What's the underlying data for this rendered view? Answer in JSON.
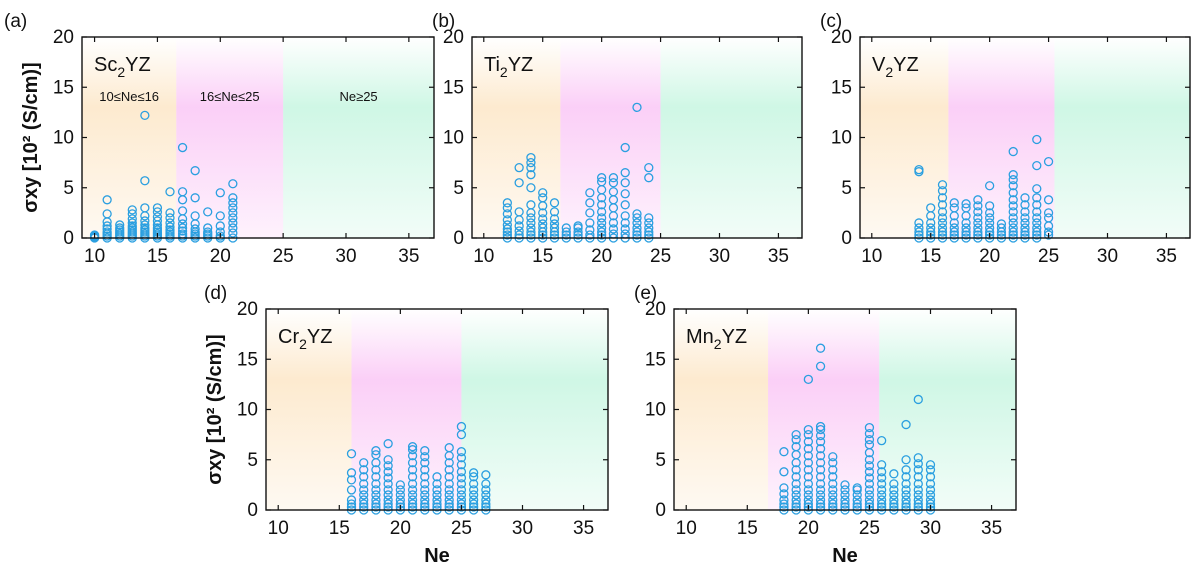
{
  "chart_data": [
    {
      "type": "scatter",
      "panel_label": "(a)",
      "compound": {
        "base": "Sc",
        "sub": "2",
        "rest": "YZ"
      },
      "ylabel": "σxy [10² (S/cm)]",
      "xlabel": "",
      "xlim": [
        9,
        37
      ],
      "ylim": [
        0,
        20
      ],
      "xticks": [
        10,
        15,
        20,
        25,
        30,
        35
      ],
      "yticks": [
        0,
        5,
        10,
        15,
        20
      ],
      "regions": [
        {
          "from": 9,
          "to": 16.5,
          "color": "#fbd9a8",
          "label": "10≤Ne≤16"
        },
        {
          "from": 16.5,
          "to": 25,
          "color": "#f7a8f0",
          "label": "16≤Ne≤25"
        },
        {
          "from": 25,
          "to": 37,
          "color": "#a8f0d0",
          "label": "Ne≥25"
        }
      ],
      "marker_color": "#2a9fe0",
      "columns": [
        {
          "x": 10,
          "y": [
            0,
            0.1,
            0.2,
            0.3
          ]
        },
        {
          "x": 11,
          "y": [
            0,
            0.2,
            0.4,
            0.6,
            0.9,
            1.2,
            1.6,
            2.4,
            3.8
          ]
        },
        {
          "x": 12,
          "y": [
            0,
            0.2,
            0.4,
            0.6,
            0.8,
            1.0,
            1.3
          ]
        },
        {
          "x": 13,
          "y": [
            0,
            0.2,
            0.4,
            0.6,
            0.8,
            1.0,
            1.2,
            1.5,
            1.9,
            2.4,
            2.8
          ]
        },
        {
          "x": 14,
          "y": [
            0,
            0.2,
            0.4,
            0.6,
            0.8,
            1.0,
            1.3,
            1.7,
            2.2,
            3.0,
            5.7,
            12.2
          ]
        },
        {
          "x": 15,
          "y": [
            0,
            0.2,
            0.4,
            0.6,
            0.8,
            1.0,
            1.3,
            1.7,
            2.1,
            2.6,
            3.0
          ]
        },
        {
          "x": 16,
          "y": [
            0,
            0.2,
            0.4,
            0.6,
            0.8,
            1.1,
            1.5,
            2.0,
            2.5,
            4.6
          ]
        },
        {
          "x": 17,
          "y": [
            0,
            0.2,
            0.4,
            0.7,
            1.0,
            1.4,
            1.9,
            2.7,
            3.8,
            4.6,
            9.0
          ]
        },
        {
          "x": 18,
          "y": [
            0,
            0.2,
            0.4,
            0.6,
            0.9,
            1.4,
            2.2,
            4.0,
            6.7
          ]
        },
        {
          "x": 19,
          "y": [
            0,
            0.2,
            0.4,
            0.6,
            1.0,
            2.6
          ]
        },
        {
          "x": 20,
          "y": [
            0,
            0.2,
            0.6,
            1.2,
            2.2,
            4.5
          ]
        },
        {
          "x": 21,
          "y": [
            0,
            0.5,
            1.0,
            1.5,
            2.0,
            2.5,
            3.0,
            3.5,
            4.0,
            5.4
          ]
        }
      ]
    },
    {
      "type": "scatter",
      "panel_label": "(b)",
      "compound": {
        "base": "Ti",
        "sub": "2",
        "rest": "YZ"
      },
      "ylabel": "",
      "xlabel": "",
      "xlim": [
        9,
        37
      ],
      "ylim": [
        0,
        20
      ],
      "xticks": [
        10,
        15,
        20,
        25,
        30,
        35
      ],
      "yticks": [
        0,
        5,
        10,
        15,
        20
      ],
      "regions": [
        {
          "from": 9,
          "to": 16.5,
          "color": "#fbd9a8",
          "label": ""
        },
        {
          "from": 16.5,
          "to": 25,
          "color": "#f7a8f0",
          "label": ""
        },
        {
          "from": 25,
          "to": 37,
          "color": "#a8f0d0",
          "label": ""
        }
      ],
      "marker_color": "#2a9fe0",
      "columns": [
        {
          "x": 12,
          "y": [
            0,
            0.3,
            0.6,
            0.9,
            1.3,
            1.8,
            2.4,
            3.0,
            3.5
          ]
        },
        {
          "x": 13,
          "y": [
            0,
            0.3,
            0.7,
            1.2,
            1.8,
            2.6,
            5.5,
            7.0
          ]
        },
        {
          "x": 14,
          "y": [
            0,
            0.3,
            0.6,
            1.0,
            1.5,
            2.0,
            2.5,
            3.3,
            5.0,
            6.3,
            7.0,
            7.5,
            8.0
          ]
        },
        {
          "x": 15,
          "y": [
            0,
            0.3,
            0.6,
            1.0,
            1.4,
            1.9,
            2.5,
            3.2,
            4.0,
            4.5
          ]
        },
        {
          "x": 16,
          "y": [
            0,
            0.3,
            0.6,
            1.0,
            1.4,
            1.9,
            2.6,
            3.5
          ]
        },
        {
          "x": 17,
          "y": [
            0,
            0.3,
            0.6,
            1.0
          ]
        },
        {
          "x": 18,
          "y": [
            0,
            0.3,
            0.6,
            1.0,
            1.2
          ]
        },
        {
          "x": 19,
          "y": [
            0,
            0.3,
            0.8,
            1.5,
            2.5,
            3.5,
            4.5
          ]
        },
        {
          "x": 20,
          "y": [
            0,
            0.3,
            0.6,
            1.0,
            1.5,
            2.0,
            2.6,
            3.3,
            4.0,
            4.8,
            5.6,
            6.0
          ]
        },
        {
          "x": 21,
          "y": [
            0,
            0.4,
            0.9,
            1.5,
            2.2,
            3.0,
            3.8,
            4.6,
            5.5,
            6.0
          ]
        },
        {
          "x": 22,
          "y": [
            0,
            0.4,
            0.9,
            1.5,
            2.2,
            3.3,
            4.4,
            5.5,
            6.5,
            9.0
          ]
        },
        {
          "x": 23,
          "y": [
            0,
            0.3,
            0.6,
            1.0,
            1.5,
            2.0,
            2.4,
            13.0
          ]
        },
        {
          "x": 24,
          "y": [
            0,
            0.3,
            0.6,
            1.0,
            1.5,
            2.0,
            6.0,
            7.0
          ]
        }
      ]
    },
    {
      "type": "scatter",
      "panel_label": "(c)",
      "compound": {
        "base": "V",
        "sub": "2",
        "rest": "YZ"
      },
      "ylabel": "",
      "xlabel": "",
      "xlim": [
        9,
        37
      ],
      "ylim": [
        0,
        20
      ],
      "xticks": [
        10,
        15,
        20,
        25,
        30,
        35
      ],
      "yticks": [
        0,
        5,
        10,
        15,
        20
      ],
      "regions": [
        {
          "from": 9,
          "to": 16.5,
          "color": "#fbd9a8",
          "label": ""
        },
        {
          "from": 16.5,
          "to": 25.5,
          "color": "#f7a8f0",
          "label": ""
        },
        {
          "from": 25.5,
          "to": 37,
          "color": "#a8f0d0",
          "label": ""
        }
      ],
      "marker_color": "#2a9fe0",
      "columns": [
        {
          "x": 14,
          "y": [
            0,
            0.3,
            0.6,
            1.0,
            1.5,
            6.6,
            6.8
          ]
        },
        {
          "x": 15,
          "y": [
            0,
            0.3,
            0.6,
            1.0,
            1.5,
            2.2,
            3.0
          ]
        },
        {
          "x": 16,
          "y": [
            0,
            0.3,
            0.6,
            1.0,
            1.5,
            2.0,
            2.6,
            3.3,
            4.0,
            4.7,
            5.3
          ]
        },
        {
          "x": 17,
          "y": [
            0,
            0.3,
            0.6,
            1.0,
            1.5,
            2.2,
            3.0,
            3.5
          ]
        },
        {
          "x": 18,
          "y": [
            0,
            0.3,
            0.6,
            1.0,
            1.5,
            2.2,
            3.0,
            3.4
          ]
        },
        {
          "x": 19,
          "y": [
            0,
            0.3,
            0.6,
            1.0,
            1.5,
            2.0,
            2.6,
            3.2,
            3.8
          ]
        },
        {
          "x": 20,
          "y": [
            0,
            0.3,
            0.6,
            1.0,
            1.5,
            2.0,
            2.5,
            3.2,
            5.2
          ]
        },
        {
          "x": 21,
          "y": [
            0,
            0.3,
            0.6,
            1.0,
            1.4
          ]
        },
        {
          "x": 22,
          "y": [
            0,
            0.3,
            0.6,
            1.0,
            1.5,
            2.0,
            2.6,
            3.2,
            3.8,
            4.5,
            5.2,
            5.8,
            6.3,
            8.6
          ]
        },
        {
          "x": 23,
          "y": [
            0,
            0.3,
            0.6,
            1.0,
            1.5,
            2.0,
            2.6,
            3.3,
            4.0
          ]
        },
        {
          "x": 24,
          "y": [
            0,
            0.3,
            0.6,
            1.0,
            1.5,
            2.0,
            2.6,
            3.3,
            4.0,
            4.9,
            7.2,
            9.8
          ]
        },
        {
          "x": 25,
          "y": [
            0.3,
            0.6,
            1.2,
            2.0,
            2.5,
            3.8,
            7.6
          ]
        }
      ]
    },
    {
      "type": "scatter",
      "panel_label": "(d)",
      "compound": {
        "base": "Cr",
        "sub": "2",
        "rest": "YZ"
      },
      "ylabel": "σxy [10² (S/cm)]",
      "xlabel": "Ne",
      "xlim": [
        9,
        37
      ],
      "ylim": [
        0,
        20
      ],
      "xticks": [
        10,
        15,
        20,
        25,
        30,
        35
      ],
      "yticks": [
        0,
        5,
        10,
        15,
        20
      ],
      "regions": [
        {
          "from": 9,
          "to": 16,
          "color": "#fbd9a8",
          "label": ""
        },
        {
          "from": 16,
          "to": 25,
          "color": "#f7a8f0",
          "label": ""
        },
        {
          "from": 25,
          "to": 37,
          "color": "#a8f0d0",
          "label": ""
        }
      ],
      "marker_color": "#2a9fe0",
      "columns": [
        {
          "x": 16,
          "y": [
            0,
            0.3,
            0.6,
            1.0,
            2.0,
            3.0,
            3.7,
            5.6
          ]
        },
        {
          "x": 17,
          "y": [
            0,
            0.3,
            0.6,
            1.0,
            1.5,
            2.0,
            2.6,
            3.3,
            4.0,
            4.7
          ]
        },
        {
          "x": 18,
          "y": [
            0,
            0.3,
            0.6,
            1.0,
            1.5,
            2.0,
            2.6,
            3.3,
            4.0,
            4.7,
            5.5,
            5.9
          ]
        },
        {
          "x": 19,
          "y": [
            0,
            0.3,
            0.6,
            1.0,
            1.5,
            2.0,
            2.6,
            3.2,
            3.8,
            4.4,
            5.0,
            6.6
          ]
        },
        {
          "x": 20,
          "y": [
            0,
            0.3,
            0.6,
            1.0,
            1.5,
            2.0,
            2.5
          ]
        },
        {
          "x": 21,
          "y": [
            0,
            0.3,
            0.6,
            1.0,
            1.5,
            2.0,
            2.6,
            3.3,
            4.0,
            4.7,
            5.4,
            6.0,
            6.3
          ]
        },
        {
          "x": 22,
          "y": [
            0,
            0.3,
            0.6,
            1.0,
            1.5,
            2.0,
            2.6,
            3.3,
            4.0,
            4.7,
            5.3,
            5.9
          ]
        },
        {
          "x": 23,
          "y": [
            0,
            0.3,
            0.6,
            1.0,
            1.5,
            2.0,
            2.6,
            3.3
          ]
        },
        {
          "x": 24,
          "y": [
            0,
            0.3,
            0.6,
            1.0,
            1.5,
            2.0,
            2.6,
            3.3,
            4.0,
            4.7,
            5.4,
            6.2
          ]
        },
        {
          "x": 25,
          "y": [
            0,
            0.3,
            0.6,
            1.0,
            1.5,
            2.0,
            2.6,
            3.2,
            3.8,
            4.5,
            5.2,
            5.8,
            7.5,
            8.3
          ]
        },
        {
          "x": 26,
          "y": [
            0,
            0.3,
            0.6,
            1.0,
            1.5,
            2.0,
            2.6,
            3.3,
            3.7
          ]
        },
        {
          "x": 27,
          "y": [
            0,
            0.3,
            0.6,
            1.0,
            1.5,
            2.0,
            2.6,
            3.5
          ]
        }
      ]
    },
    {
      "type": "scatter",
      "panel_label": "(e)",
      "compound": {
        "base": "Mn",
        "sub": "2",
        "rest": "YZ"
      },
      "ylabel": "",
      "xlabel": "Ne",
      "xlim": [
        9,
        37
      ],
      "ylim": [
        0,
        20
      ],
      "xticks": [
        10,
        15,
        20,
        25,
        30,
        35
      ],
      "yticks": [
        0,
        5,
        10,
        15,
        20
      ],
      "regions": [
        {
          "from": 9,
          "to": 16.7,
          "color": "#fbd9a8",
          "label": ""
        },
        {
          "from": 16.7,
          "to": 25.8,
          "color": "#f7a8f0",
          "label": ""
        },
        {
          "from": 25.8,
          "to": 37,
          "color": "#a8f0d0",
          "label": ""
        }
      ],
      "marker_color": "#2a9fe0",
      "columns": [
        {
          "x": 18,
          "y": [
            0,
            0.3,
            0.6,
            1.0,
            1.6,
            2.2,
            3.8,
            5.8
          ]
        },
        {
          "x": 19,
          "y": [
            0,
            0.3,
            0.6,
            1.0,
            1.5,
            2.0,
            2.6,
            3.3,
            4.0,
            4.7,
            5.5,
            6.3,
            7.0,
            7.5
          ]
        },
        {
          "x": 20,
          "y": [
            0,
            0.3,
            0.6,
            1.0,
            1.5,
            2.0,
            2.6,
            3.3,
            4.0,
            4.7,
            5.4,
            6.1,
            6.8,
            7.5,
            8.0,
            13.0
          ]
        },
        {
          "x": 21,
          "y": [
            0,
            0.3,
            0.6,
            1.0,
            1.5,
            2.0,
            2.6,
            3.3,
            4.0,
            4.7,
            5.4,
            6.1,
            6.8,
            7.4,
            8.0,
            8.3,
            14.3,
            16.1
          ]
        },
        {
          "x": 22,
          "y": [
            0,
            0.3,
            0.6,
            1.0,
            1.5,
            2.0,
            2.6,
            3.3,
            4.0,
            4.7,
            5.3
          ]
        },
        {
          "x": 23,
          "y": [
            0,
            0.3,
            0.6,
            1.0,
            1.5,
            2.0,
            2.5
          ]
        },
        {
          "x": 24,
          "y": [
            0,
            0.3,
            0.6,
            1.0,
            1.5,
            2.0,
            2.2
          ]
        },
        {
          "x": 25,
          "y": [
            0,
            0.3,
            0.6,
            1.0,
            1.5,
            2.0,
            2.6,
            3.2,
            3.8,
            4.4,
            5.0,
            5.7,
            6.5,
            7.0,
            7.6,
            8.2
          ]
        },
        {
          "x": 26,
          "y": [
            0,
            0.3,
            0.6,
            1.0,
            1.5,
            2.0,
            2.6,
            3.2,
            3.8,
            4.5,
            6.9
          ]
        },
        {
          "x": 27,
          "y": [
            0,
            0.3,
            0.6,
            1.0,
            1.5,
            2.0,
            2.6,
            3.6
          ]
        },
        {
          "x": 28,
          "y": [
            0,
            0.3,
            0.6,
            1.0,
            1.5,
            2.0,
            2.6,
            3.3,
            4.0,
            5.0,
            8.5
          ]
        },
        {
          "x": 29,
          "y": [
            0,
            0.3,
            0.6,
            1.0,
            1.5,
            2.0,
            2.6,
            3.3,
            4.0,
            4.6,
            5.2,
            11.0
          ]
        },
        {
          "x": 30,
          "y": [
            0,
            0.3,
            0.6,
            1.0,
            1.5,
            2.0,
            2.6,
            3.3,
            4.0,
            4.5
          ]
        }
      ]
    }
  ]
}
